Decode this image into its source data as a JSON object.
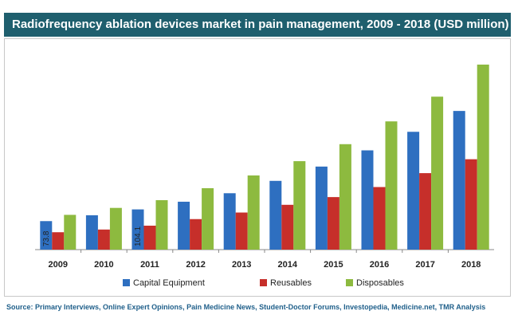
{
  "header": {
    "title": "Radiofrequency ablation devices market in pain management, 2009 - 2018 (USD million)"
  },
  "footer": {
    "source": "Source: Primary Interviews, Online Expert Opinions, Pain Medicine News, Student-Doctor Forums, Investopedia, Medicine.net, TMR Analysis"
  },
  "chart_data": {
    "type": "bar",
    "title": "Radiofrequency ablation devices market in pain management, 2009 - 2018 (USD million)",
    "categories": [
      "2009",
      "2010",
      "2011",
      "2012",
      "2013",
      "2014",
      "2015",
      "2016",
      "2017",
      "2018"
    ],
    "series": [
      {
        "name": "Capital Equipment",
        "color": "#2e6fc0",
        "values": [
          73.8,
          89,
          104.1,
          124,
          146,
          178,
          215,
          257,
          305,
          359
        ],
        "data_labels": [
          "73.8",
          "",
          "104.1",
          "",
          "",
          "",
          "",
          "",
          "",
          ""
        ]
      },
      {
        "name": "Reusables",
        "color": "#c62f2a",
        "values": [
          45,
          52,
          62,
          79,
          96,
          116,
          136,
          162,
          198,
          234
        ]
      },
      {
        "name": "Disposables",
        "color": "#8dba3f",
        "values": [
          90,
          108,
          128,
          159,
          192,
          229,
          273,
          332,
          396,
          479
        ]
      }
    ],
    "legend_position": "bottom",
    "grid": false,
    "ylim": [
      0,
      500
    ]
  }
}
